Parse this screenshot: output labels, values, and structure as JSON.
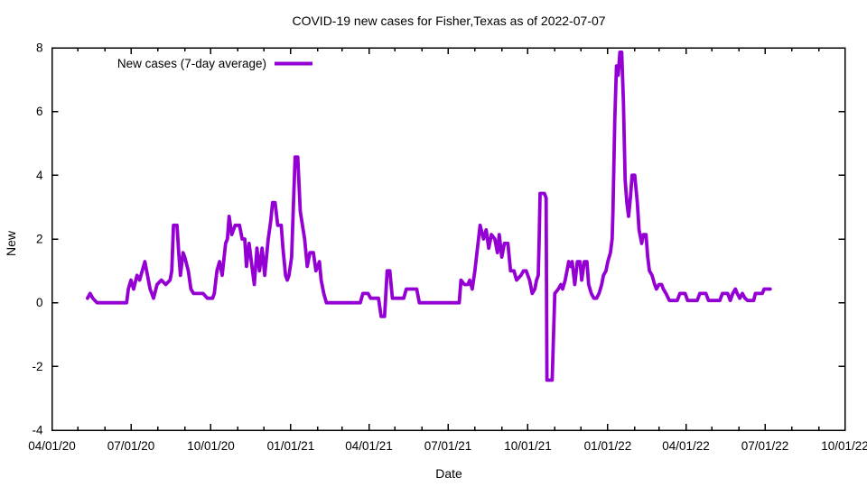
{
  "chart_data": {
    "type": "line",
    "title": "COVID-19 new cases for Fisher,Texas as of 2022-07-07",
    "xlabel": "Date",
    "ylabel": "New",
    "grid": false,
    "legend_position": "top-left-inside",
    "legend": {
      "label": "New cases (7-day average)"
    },
    "line_color": "#9400d3",
    "axis_color": "#000000",
    "ylim": [
      -4,
      8
    ],
    "yticks": [
      -4,
      -2,
      0,
      2,
      4,
      6,
      8
    ],
    "x_axis": {
      "range_days": [
        0,
        913
      ],
      "tick_labels": [
        "04/01/20",
        "07/01/20",
        "10/01/20",
        "01/01/21",
        "04/01/21",
        "07/01/21",
        "10/01/21",
        "01/01/22",
        "04/01/22",
        "07/01/22",
        "10/01/22"
      ],
      "tick_days": [
        0,
        91,
        183,
        275,
        365,
        456,
        548,
        640,
        730,
        821,
        913
      ],
      "minor_tick_days": [
        30,
        61,
        122,
        153,
        214,
        244,
        306,
        334,
        395,
        426,
        487,
        518,
        579,
        609,
        671,
        699,
        760,
        791,
        852,
        883
      ]
    },
    "series": [
      {
        "name": "New cases (7-day average)",
        "color": "#9400d3",
        "x_unit": "days since 04/01/20",
        "last_date": "2022-07-07",
        "points_day_value": [
          [
            41,
            0.14
          ],
          [
            44,
            0.29
          ],
          [
            47,
            0.14
          ],
          [
            52,
            0
          ],
          [
            86,
            0
          ],
          [
            88,
            0.43
          ],
          [
            91,
            0.71
          ],
          [
            94,
            0.43
          ],
          [
            98,
            0.86
          ],
          [
            101,
            0.71
          ],
          [
            104,
            1
          ],
          [
            107,
            1.29
          ],
          [
            110,
            0.86
          ],
          [
            113,
            0.43
          ],
          [
            117,
            0.14
          ],
          [
            121,
            0.57
          ],
          [
            126,
            0.71
          ],
          [
            131,
            0.57
          ],
          [
            136,
            0.71
          ],
          [
            138,
            1
          ],
          [
            140,
            2.43
          ],
          [
            144,
            2.43
          ],
          [
            146,
            1.57
          ],
          [
            148,
            0.86
          ],
          [
            151,
            1.57
          ],
          [
            153,
            1.43
          ],
          [
            157,
            1
          ],
          [
            160,
            0.43
          ],
          [
            163,
            0.29
          ],
          [
            174,
            0.29
          ],
          [
            179,
            0.14
          ],
          [
            185,
            0.14
          ],
          [
            187,
            0.29
          ],
          [
            190,
            1
          ],
          [
            193,
            1.29
          ],
          [
            196,
            0.86
          ],
          [
            200,
            1.86
          ],
          [
            202,
            2
          ],
          [
            204,
            2.71
          ],
          [
            207,
            2.14
          ],
          [
            211,
            2.43
          ],
          [
            216,
            2.43
          ],
          [
            219,
            2
          ],
          [
            222,
            2
          ],
          [
            224,
            1.14
          ],
          [
            227,
            1.86
          ],
          [
            231,
            1
          ],
          [
            233,
            0.57
          ],
          [
            236,
            1.71
          ],
          [
            239,
            1
          ],
          [
            242,
            1.71
          ],
          [
            245,
            0.86
          ],
          [
            249,
            2
          ],
          [
            252,
            2.57
          ],
          [
            254,
            3.14
          ],
          [
            257,
            3.14
          ],
          [
            260,
            2.43
          ],
          [
            264,
            2.43
          ],
          [
            266,
            1.71
          ],
          [
            269,
            0.86
          ],
          [
            271,
            0.71
          ],
          [
            273,
            0.86
          ],
          [
            276,
            1.43
          ],
          [
            278,
            3
          ],
          [
            280,
            4.57
          ],
          [
            283,
            4.57
          ],
          [
            286,
            2.86
          ],
          [
            291,
            2
          ],
          [
            294,
            1.14
          ],
          [
            297,
            1.57
          ],
          [
            301,
            1.57
          ],
          [
            304,
            1
          ],
          [
            308,
            1.29
          ],
          [
            310,
            0.71
          ],
          [
            313,
            0.29
          ],
          [
            316,
            0
          ],
          [
            355,
            0
          ],
          [
            358,
            0.29
          ],
          [
            364,
            0.29
          ],
          [
            367,
            0.14
          ],
          [
            376,
            0.14
          ],
          [
            379,
            -0.43
          ],
          [
            383,
            -0.43
          ],
          [
            386,
            1
          ],
          [
            389,
            1
          ],
          [
            392,
            0.14
          ],
          [
            405,
            0.14
          ],
          [
            408,
            0.43
          ],
          [
            420,
            0.43
          ],
          [
            423,
            0
          ],
          [
            469,
            0
          ],
          [
            471,
            0.71
          ],
          [
            475,
            0.57
          ],
          [
            479,
            0.57
          ],
          [
            481,
            0.71
          ],
          [
            484,
            0.43
          ],
          [
            487,
            1
          ],
          [
            490,
            1.71
          ],
          [
            493,
            2.43
          ],
          [
            497,
            2
          ],
          [
            500,
            2.29
          ],
          [
            503,
            1.71
          ],
          [
            506,
            2.14
          ],
          [
            510,
            2
          ],
          [
            513,
            1.57
          ],
          [
            515,
            2.14
          ],
          [
            518,
            1.43
          ],
          [
            521,
            1.86
          ],
          [
            525,
            1.86
          ],
          [
            528,
            1
          ],
          [
            532,
            1
          ],
          [
            535,
            0.71
          ],
          [
            540,
            0.86
          ],
          [
            543,
            1
          ],
          [
            546,
            1
          ],
          [
            550,
            0.71
          ],
          [
            553,
            0.29
          ],
          [
            556,
            0.43
          ],
          [
            558,
            0.71
          ],
          [
            560,
            0.86
          ],
          [
            561,
            2
          ],
          [
            562,
            3.43
          ],
          [
            567,
            3.43
          ],
          [
            569,
            3.29
          ],
          [
            570,
            -2.43
          ],
          [
            576,
            -2.43
          ],
          [
            579,
            0.29
          ],
          [
            583,
            0.43
          ],
          [
            586,
            0.57
          ],
          [
            588,
            0.43
          ],
          [
            591,
            0.71
          ],
          [
            593,
            1
          ],
          [
            595,
            1.29
          ],
          [
            597,
            1.14
          ],
          [
            599,
            1.29
          ],
          [
            602,
            0.57
          ],
          [
            605,
            1.29
          ],
          [
            608,
            1.29
          ],
          [
            610,
            0.71
          ],
          [
            613,
            1.29
          ],
          [
            616,
            1.29
          ],
          [
            618,
            0.57
          ],
          [
            621,
            0.29
          ],
          [
            624,
            0.14
          ],
          [
            627,
            0.14
          ],
          [
            630,
            0.29
          ],
          [
            633,
            0.57
          ],
          [
            635,
            0.86
          ],
          [
            638,
            1
          ],
          [
            640,
            1.29
          ],
          [
            643,
            1.57
          ],
          [
            645,
            2
          ],
          [
            646,
            2.86
          ],
          [
            648,
            5.71
          ],
          [
            650,
            7.43
          ],
          [
            652,
            7.14
          ],
          [
            654,
            7.86
          ],
          [
            656,
            7.86
          ],
          [
            658,
            6.29
          ],
          [
            660,
            3.86
          ],
          [
            662,
            3.14
          ],
          [
            664,
            2.71
          ],
          [
            666,
            3.29
          ],
          [
            668,
            4
          ],
          [
            671,
            4
          ],
          [
            674,
            3.14
          ],
          [
            676,
            2.29
          ],
          [
            679,
            1.86
          ],
          [
            681,
            2.14
          ],
          [
            684,
            2.14
          ],
          [
            686,
            1.43
          ],
          [
            688,
            1
          ],
          [
            691,
            0.86
          ],
          [
            694,
            0.57
          ],
          [
            696,
            0.43
          ],
          [
            699,
            0.57
          ],
          [
            702,
            0.57
          ],
          [
            704,
            0.43
          ],
          [
            707,
            0.29
          ],
          [
            711,
            0.07
          ],
          [
            716,
            0.07
          ],
          [
            720,
            0.07
          ],
          [
            723,
            0.29
          ],
          [
            729,
            0.29
          ],
          [
            732,
            0.07
          ],
          [
            743,
            0.07
          ],
          [
            746,
            0.29
          ],
          [
            753,
            0.29
          ],
          [
            756,
            0.07
          ],
          [
            769,
            0.07
          ],
          [
            772,
            0.29
          ],
          [
            778,
            0.29
          ],
          [
            781,
            0.07
          ],
          [
            784,
            0.29
          ],
          [
            787,
            0.43
          ],
          [
            789,
            0.29
          ],
          [
            792,
            0.14
          ],
          [
            795,
            0.29
          ],
          [
            798,
            0.14
          ],
          [
            801,
            0.07
          ],
          [
            808,
            0.07
          ],
          [
            810,
            0.29
          ],
          [
            818,
            0.29
          ],
          [
            820,
            0.43
          ],
          [
            827,
            0.43
          ]
        ]
      }
    ]
  }
}
